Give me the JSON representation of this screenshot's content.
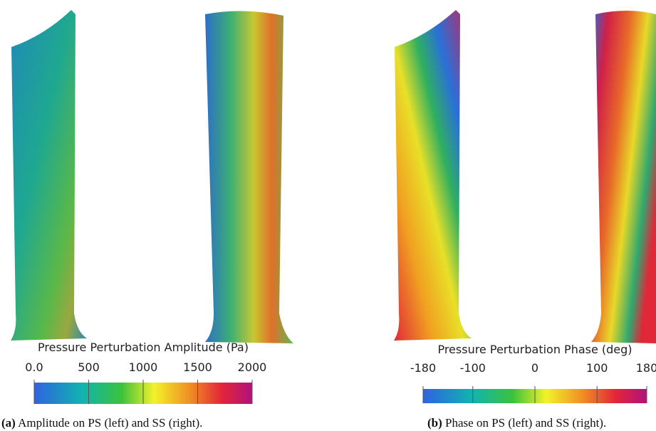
{
  "panels": [
    {
      "colorbar": {
        "title": "Pressure Perturbation Amplitude (Pa)",
        "range": [
          0,
          2000
        ],
        "ticks": [
          {
            "value": 0,
            "label": "0.0"
          },
          500,
          1000,
          1500,
          2000
        ]
      },
      "caption": {
        "label": "(a)",
        "text": "Amplitude on PS (left) and SS (right)."
      }
    },
    {
      "colorbar": {
        "title": "Pressure Perturbation Phase (deg)",
        "range": [
          -180,
          180
        ],
        "ticks": [
          -180,
          -100,
          0,
          100,
          180
        ]
      },
      "caption": {
        "label": "(b)",
        "text": "Phase on PS (left) and SS (right)."
      }
    }
  ]
}
